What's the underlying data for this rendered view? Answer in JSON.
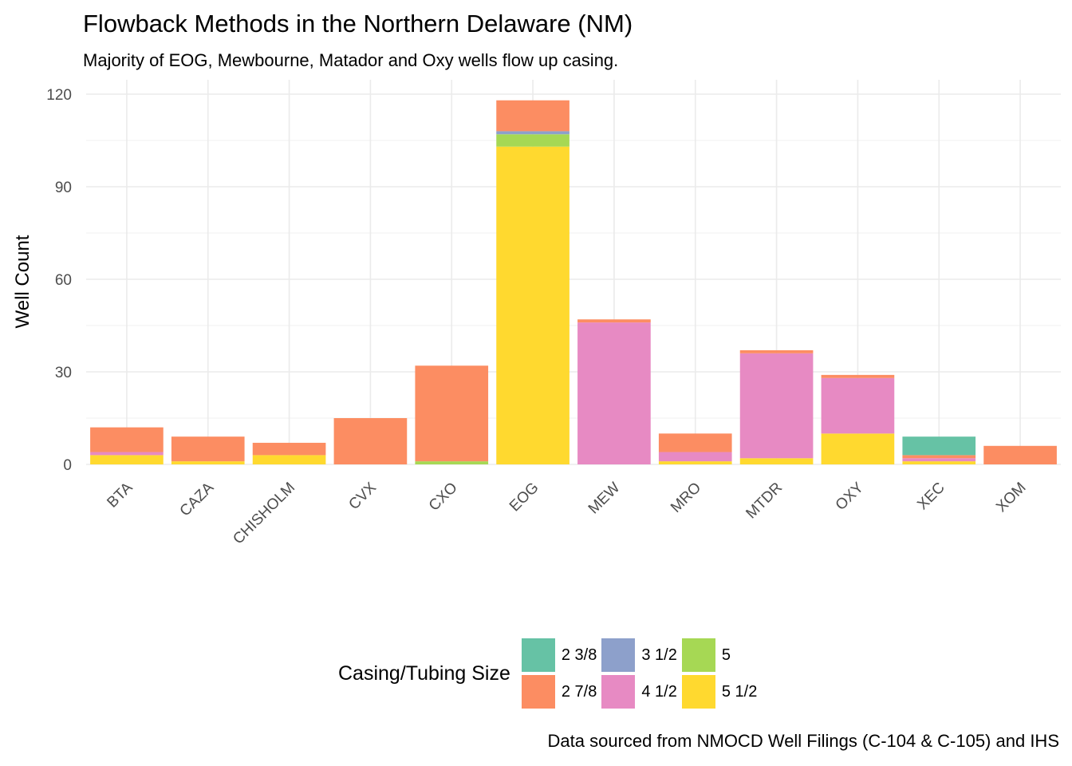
{
  "chart_data": {
    "type": "bar",
    "stacked": true,
    "title": "Flowback Methods in the Northern Delaware (NM)",
    "subtitle": "Majority of EOG, Mewbourne, Matador and Oxy wells flow up casing.",
    "caption": "Data sourced from NMOCD Well Filings (C-104 & C-105) and IHS",
    "xlabel": "",
    "ylabel": "Well Count",
    "ylim": [
      0,
      120
    ],
    "yticks": [
      0,
      30,
      60,
      90,
      120
    ],
    "grid": true,
    "legend_title": "Casing/Tubing Size",
    "legend_position": "bottom",
    "categories": [
      "BTA",
      "CAZA",
      "CHISHOLM",
      "CVX",
      "CXO",
      "EOG",
      "MEW",
      "MRO",
      "MTDR",
      "OXY",
      "XEC",
      "XOM"
    ],
    "series": [
      {
        "name": "5 1/2",
        "color": "#FFD92F",
        "values": [
          3,
          1,
          3,
          0,
          0,
          103,
          0,
          1,
          2,
          10,
          1,
          0
        ]
      },
      {
        "name": "5",
        "color": "#A6D854",
        "values": [
          0,
          0,
          0,
          0,
          1,
          4,
          0,
          0,
          0,
          0,
          0,
          0
        ]
      },
      {
        "name": "4 1/2",
        "color": "#E78AC3",
        "values": [
          1,
          0,
          0,
          0,
          0,
          0,
          46,
          3,
          34,
          18,
          1,
          0
        ]
      },
      {
        "name": "3 1/2",
        "color": "#8DA0CB",
        "values": [
          0,
          0,
          0,
          0,
          0,
          1,
          0,
          0,
          0,
          0,
          0,
          0
        ]
      },
      {
        "name": "2 7/8",
        "color": "#FC8D62",
        "values": [
          8,
          8,
          4,
          15,
          31,
          10,
          1,
          6,
          1,
          1,
          1,
          6
        ]
      },
      {
        "name": "2 3/8",
        "color": "#66C2A5",
        "values": [
          0,
          0,
          0,
          0,
          0,
          0,
          0,
          0,
          0,
          0,
          6,
          0
        ]
      }
    ],
    "legend_order": [
      "2 3/8",
      "3 1/2",
      "5",
      "2 7/8",
      "4 1/2",
      "5 1/2"
    ]
  }
}
